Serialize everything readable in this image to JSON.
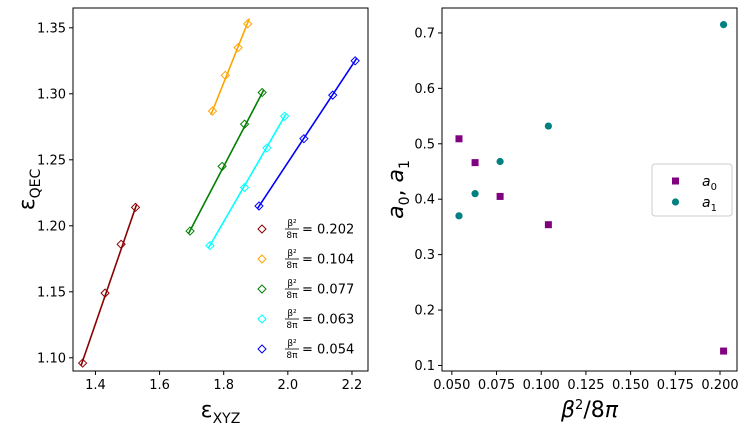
{
  "chart_data": [
    {
      "type": "line",
      "panel": "left",
      "xlabel": "ε_XYZ",
      "ylabel": "ε_QEC",
      "xlim": [
        1.33,
        2.25
      ],
      "ylim": [
        1.09,
        1.365
      ],
      "xticks": [
        1.4,
        1.6,
        1.8,
        2.0,
        2.2
      ],
      "yticks": [
        1.1,
        1.15,
        1.2,
        1.25,
        1.3,
        1.35
      ],
      "xtick_labels": [
        "1.4",
        "1.6",
        "1.8",
        "2.0",
        "2.2"
      ],
      "ytick_labels": [
        "1.10",
        "1.15",
        "1.20",
        "1.25",
        "1.30",
        "1.35"
      ],
      "legend_location": "lower-right",
      "series": [
        {
          "name": "0.202",
          "label_prefix": "β²/8π",
          "label_value": "= 0.202",
          "color": "#8b0000",
          "x": [
            1.36,
            1.43,
            1.48,
            1.525
          ],
          "y": [
            1.096,
            1.149,
            1.186,
            1.214
          ],
          "fit_x": [
            1.355,
            1.528
          ],
          "fit_y": [
            1.094,
            1.216
          ]
        },
        {
          "name": "0.104",
          "label_prefix": "β²/8π",
          "label_value": "= 0.104",
          "color": "#ffa500",
          "x": [
            1.765,
            1.805,
            1.845,
            1.875
          ],
          "y": [
            1.287,
            1.314,
            1.335,
            1.353
          ],
          "fit_x": [
            1.76,
            1.88
          ],
          "fit_y": [
            1.284,
            1.357
          ]
        },
        {
          "name": "0.077",
          "label_prefix": "β²/8π",
          "label_value": "= 0.077",
          "color": "#008000",
          "x": [
            1.695,
            1.795,
            1.865,
            1.92
          ],
          "y": [
            1.196,
            1.245,
            1.277,
            1.301
          ],
          "fit_x": [
            1.69,
            1.925
          ],
          "fit_y": [
            1.194,
            1.303
          ]
        },
        {
          "name": "0.063",
          "label_prefix": "β²/8π",
          "label_value": "= 0.063",
          "color": "#00ffff",
          "x": [
            1.757,
            1.865,
            1.935,
            1.99
          ],
          "y": [
            1.185,
            1.229,
            1.259,
            1.283
          ],
          "fit_x": [
            1.752,
            1.995
          ],
          "fit_y": [
            1.183,
            1.285
          ]
        },
        {
          "name": "0.054",
          "label_prefix": "β²/8π",
          "label_value": "= 0.054",
          "color": "#0000ff",
          "x": [
            1.91,
            2.05,
            2.14,
            2.21
          ],
          "y": [
            1.215,
            1.266,
            1.299,
            1.325
          ],
          "fit_x": [
            1.905,
            2.215
          ],
          "fit_y": [
            1.213,
            1.327
          ]
        }
      ]
    },
    {
      "type": "scatter",
      "panel": "right",
      "xlabel": "β²/8π",
      "ylabel": "a₀, a₁",
      "xlim": [
        0.0445,
        0.2095
      ],
      "ylim": [
        0.09,
        0.745
      ],
      "xticks": [
        0.05,
        0.075,
        0.1,
        0.125,
        0.15,
        0.175,
        0.2
      ],
      "yticks": [
        0.1,
        0.2,
        0.3,
        0.4,
        0.5,
        0.6,
        0.7
      ],
      "xtick_labels": [
        "0.050",
        "0.075",
        "0.100",
        "0.125",
        "0.150",
        "0.175",
        "0.200"
      ],
      "ytick_labels": [
        "0.1",
        "0.2",
        "0.3",
        "0.4",
        "0.5",
        "0.6",
        "0.7"
      ],
      "legend_location": "center-right",
      "series": [
        {
          "name": "a₀",
          "marker": "square",
          "color": "#800080",
          "x": [
            0.054,
            0.063,
            0.077,
            0.104,
            0.202
          ],
          "y": [
            0.509,
            0.466,
            0.405,
            0.354,
            0.126
          ]
        },
        {
          "name": "a₁",
          "marker": "circle",
          "color": "#008080",
          "x": [
            0.054,
            0.063,
            0.077,
            0.104,
            0.202
          ],
          "y": [
            0.37,
            0.41,
            0.468,
            0.532,
            0.715
          ]
        }
      ]
    }
  ]
}
